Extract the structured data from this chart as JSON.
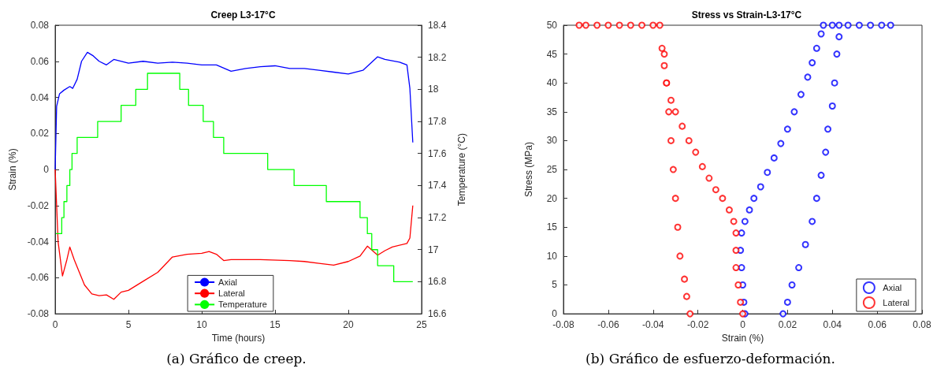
{
  "chart_data": [
    {
      "type": "line",
      "title": "Creep L3-17°C",
      "xlabel": "Time (hours)",
      "ylabel": "Strain (%)",
      "y2label": "Temperature (°C)",
      "annotations": [
        "(a) Gráfico de creep."
      ],
      "xlim": [
        0,
        25
      ],
      "xticks": [
        0,
        5,
        10,
        15,
        20,
        25
      ],
      "ylim": [
        -0.08,
        0.08
      ],
      "yticks": [
        -0.08,
        -0.06,
        -0.04,
        -0.02,
        0,
        0.02,
        0.04,
        0.06,
        0.08
      ],
      "y2lim": [
        16.6,
        18.4
      ],
      "y2ticks": [
        16.6,
        16.8,
        17,
        17.2,
        17.4,
        17.6,
        17.8,
        18,
        18.2,
        18.4
      ],
      "legend": "bottom",
      "grid": false,
      "marker": "none",
      "line_style": "solid",
      "series": [
        {
          "name": "Axial",
          "color": "#0000ff",
          "x": [
            0,
            0.1,
            0.3,
            0.6,
            1,
            1.2,
            1.5,
            1.8,
            2.2,
            2.6,
            3,
            3.5,
            4,
            5,
            6,
            7,
            8,
            9,
            10,
            11,
            12,
            13,
            14,
            15,
            16,
            17,
            18,
            19,
            20,
            21,
            22,
            22.5,
            23.5,
            24,
            24.2,
            24.4
          ],
          "values": [
            0,
            0.035,
            0.042,
            0.044,
            0.046,
            0.045,
            0.05,
            0.06,
            0.065,
            0.063,
            0.06,
            0.058,
            0.061,
            0.059,
            0.06,
            0.059,
            0.0595,
            0.059,
            0.058,
            0.058,
            0.0545,
            0.056,
            0.057,
            0.0575,
            0.056,
            0.056,
            0.055,
            0.054,
            0.053,
            0.055,
            0.0625,
            0.061,
            0.0595,
            0.058,
            0.045,
            0.015
          ]
        },
        {
          "name": "Lateral",
          "color": "#ff0000",
          "x": [
            0,
            0.2,
            0.5,
            0.8,
            1,
            1.3,
            2,
            2.5,
            3,
            3.5,
            4,
            4.5,
            5,
            6,
            7,
            8,
            9,
            10,
            10.5,
            11,
            11.5,
            12,
            14,
            16,
            17,
            18,
            19,
            20,
            20.8,
            21.3,
            22,
            22.5,
            23,
            24,
            24.2,
            24.4
          ],
          "values": [
            0,
            -0.04,
            -0.059,
            -0.05,
            -0.043,
            -0.05,
            -0.064,
            -0.069,
            -0.07,
            -0.0695,
            -0.072,
            -0.068,
            -0.067,
            -0.062,
            -0.057,
            -0.0485,
            -0.047,
            -0.0465,
            -0.0455,
            -0.047,
            -0.0505,
            -0.05,
            -0.05,
            -0.0505,
            -0.051,
            -0.052,
            -0.053,
            -0.051,
            -0.048,
            -0.0425,
            -0.0475,
            -0.045,
            -0.043,
            -0.041,
            -0.038,
            -0.02
          ]
        },
        {
          "name": "Temperature",
          "color": "#00ff00",
          "type": "step",
          "axis": "y2",
          "x": [
            0.05,
            0.45,
            0.6,
            0.8,
            1,
            1.15,
            1.5,
            2.9,
            4.5,
            5.5,
            6.3,
            8.5,
            9.1,
            10.1,
            10.8,
            11.5,
            14.5,
            16.3,
            18.5,
            20.8,
            21.3,
            21.6,
            22,
            23.1,
            24.4
          ],
          "values": [
            17.1,
            17.2,
            17.3,
            17.4,
            17.5,
            17.6,
            17.7,
            17.8,
            17.9,
            18,
            18.1,
            18,
            17.9,
            17.8,
            17.7,
            17.6,
            17.5,
            17.4,
            17.3,
            17.2,
            17.1,
            17,
            16.9,
            16.8,
            16.8
          ]
        }
      ]
    },
    {
      "type": "scatter",
      "title": "Stress vs Strain-L3-17°C",
      "xlabel": "Strain (%)",
      "ylabel": "Stress (MPa)",
      "annotations": [
        "(b) Gráfico de esfuerzo-deformación."
      ],
      "xlim": [
        -0.08,
        0.08
      ],
      "xticks": [
        -0.08,
        -0.06,
        -0.04,
        -0.02,
        0,
        0.02,
        0.04,
        0.06,
        0.08
      ],
      "ylim": [
        0,
        50
      ],
      "yticks": [
        0,
        5,
        10,
        15,
        20,
        25,
        30,
        35,
        40,
        45,
        50
      ],
      "legend": "bottom right",
      "grid": false,
      "marker": "circle",
      "series": [
        {
          "name": "Axial",
          "color": "#0000ff",
          "x": [
            0.001,
            0.0005,
            0,
            -0.0005,
            -0.001,
            -0.0005,
            0.001,
            0.003,
            0.005,
            0.008,
            0.011,
            0.014,
            0.017,
            0.02,
            0.023,
            0.026,
            0.029,
            0.031,
            0.033,
            0.035,
            0.036,
            0.04,
            0.043,
            0.047,
            0.052,
            0.057,
            0.062,
            0.066,
            0.043,
            0.042,
            0.041,
            0.04,
            0.038,
            0.037,
            0.035,
            0.033,
            0.031,
            0.028,
            0.025,
            0.022,
            0.02,
            0.018
          ],
          "values": [
            0,
            2,
            5,
            8,
            11,
            14,
            16,
            18,
            20,
            22,
            24.5,
            27,
            29.5,
            32,
            35,
            38,
            41,
            43.5,
            46,
            48.5,
            50,
            50,
            50,
            50,
            50,
            50,
            50,
            50,
            48,
            45,
            40,
            36,
            32,
            28,
            24,
            20,
            16,
            12,
            8,
            5,
            2,
            0
          ]
        },
        {
          "name": "Lateral",
          "color": "#ff0000",
          "x": [
            0,
            -0.001,
            -0.002,
            -0.003,
            -0.003,
            -0.003,
            -0.004,
            -0.006,
            -0.009,
            -0.012,
            -0.015,
            -0.018,
            -0.021,
            -0.024,
            -0.027,
            -0.03,
            -0.032,
            -0.034,
            -0.035,
            -0.036,
            -0.037,
            -0.04,
            -0.045,
            -0.05,
            -0.055,
            -0.06,
            -0.065,
            -0.07,
            -0.073,
            -0.035,
            -0.034,
            -0.033,
            -0.032,
            -0.031,
            -0.03,
            -0.029,
            -0.028,
            -0.026,
            -0.025,
            -0.0235
          ],
          "values": [
            0,
            2,
            5,
            8,
            11,
            14,
            16,
            18,
            20,
            21.5,
            23.5,
            25.5,
            28,
            30,
            32.5,
            35,
            37,
            40,
            43,
            46,
            50,
            50,
            50,
            50,
            50,
            50,
            50,
            50,
            50,
            45,
            40,
            35,
            30,
            25,
            20,
            15,
            10,
            6,
            3,
            0
          ]
        }
      ]
    }
  ]
}
